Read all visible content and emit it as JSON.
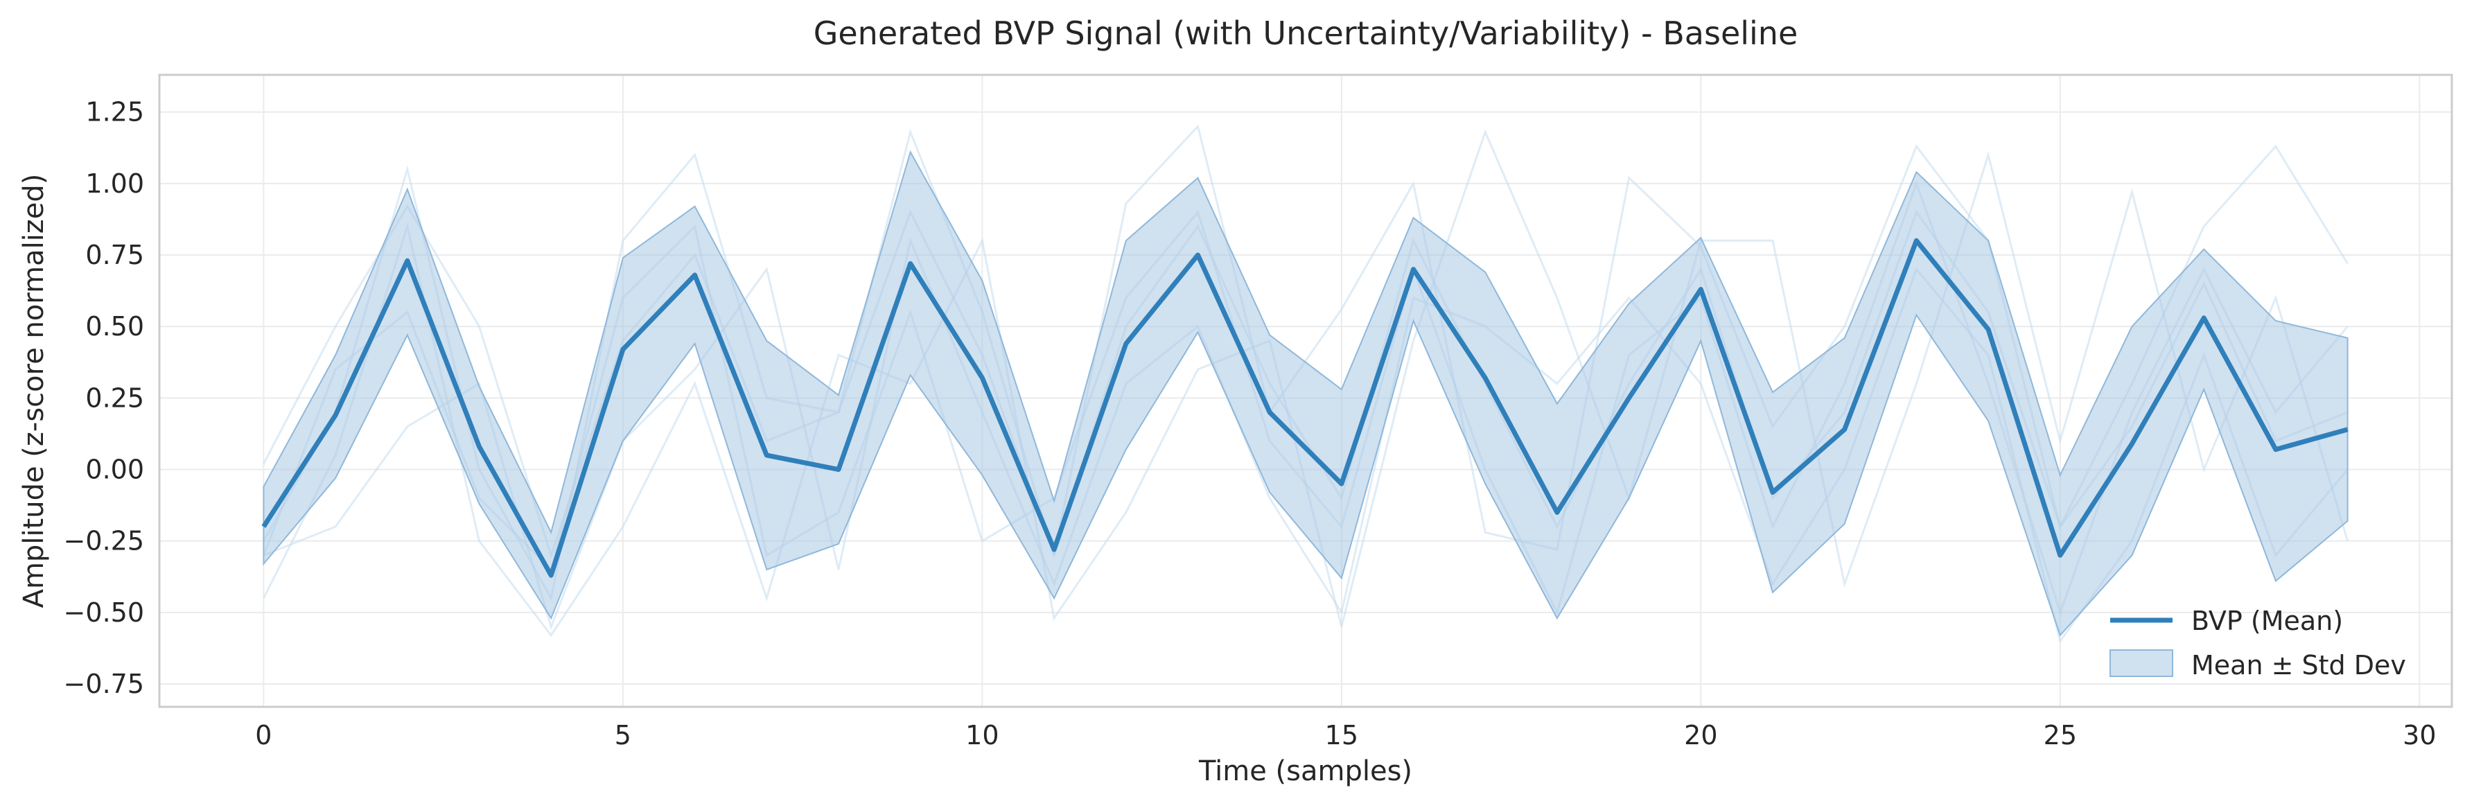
{
  "chart_data": {
    "type": "line",
    "title": "Generated BVP Signal (with Uncertainty/Variability) - Baseline",
    "xlabel": "Time (samples)",
    "ylabel": "Amplitude (z-score normalized)",
    "xlim": [
      -1.45,
      30.45
    ],
    "ylim": [
      -0.83,
      1.38
    ],
    "xticks": [
      0,
      5,
      10,
      15,
      20,
      25,
      30
    ],
    "yticks": [
      -0.75,
      -0.5,
      -0.25,
      0.0,
      0.25,
      0.5,
      0.75,
      1.0,
      1.25
    ],
    "ytick_labels": [
      "−0.75",
      "−0.50",
      "−0.25",
      "0.00",
      "0.25",
      "0.50",
      "0.75",
      "1.00",
      "1.25"
    ],
    "grid": true,
    "legend_position": "bottom-right",
    "colors": {
      "mean": "#2f7fba",
      "band": "#a9c9e3",
      "samples": "#c5dcee"
    },
    "x": [
      0,
      1,
      2,
      3,
      4,
      5,
      6,
      7,
      8,
      9,
      10,
      11,
      12,
      13,
      14,
      15,
      16,
      17,
      18,
      19,
      20,
      21,
      22,
      23,
      24,
      25,
      26,
      27,
      28,
      29
    ],
    "series": [
      {
        "name": "BVP (Mean)",
        "values": [
          -0.2,
          0.19,
          0.73,
          0.08,
          -0.37,
          0.42,
          0.68,
          0.05,
          0.0,
          0.72,
          0.32,
          -0.28,
          0.44,
          0.75,
          0.2,
          -0.05,
          0.7,
          0.32,
          -0.15,
          0.25,
          0.63,
          -0.08,
          0.14,
          0.8,
          0.49,
          -0.3,
          0.09,
          0.53,
          0.07,
          0.14
        ]
      },
      {
        "name": "Mean ± Std Dev",
        "lower": [
          -0.33,
          -0.03,
          0.47,
          -0.12,
          -0.52,
          0.1,
          0.44,
          -0.35,
          -0.26,
          0.33,
          -0.02,
          -0.45,
          0.07,
          0.48,
          -0.08,
          -0.38,
          0.52,
          -0.05,
          -0.52,
          -0.1,
          0.45,
          -0.43,
          -0.19,
          0.54,
          0.17,
          -0.58,
          -0.3,
          0.28,
          -0.39,
          -0.18
        ],
        "upper": [
          -0.06,
          0.4,
          0.98,
          0.29,
          -0.22,
          0.74,
          0.92,
          0.45,
          0.26,
          1.11,
          0.66,
          -0.11,
          0.8,
          1.02,
          0.47,
          0.28,
          0.88,
          0.69,
          0.23,
          0.58,
          0.81,
          0.27,
          0.46,
          1.04,
          0.8,
          -0.02,
          0.5,
          0.77,
          0.52,
          0.46
        ]
      }
    ],
    "sample_traces": [
      [
        0.02,
        0.5,
        0.92,
        0.5,
        -0.3,
        0.45,
        0.75,
        0.1,
        0.2,
        0.9,
        0.4,
        -0.3,
        0.5,
        0.85,
        0.3,
        -0.1,
        0.8,
        0.3,
        -0.2,
        0.3,
        0.7,
        -0.1,
        0.2,
        0.9,
        0.55,
        -0.2,
        0.15,
        0.65,
        0.1,
        0.2
      ],
      [
        -0.3,
        -0.2,
        0.15,
        0.3,
        -0.55,
        0.1,
        0.35,
        0.7,
        -0.35,
        0.8,
        0.2,
        -0.4,
        0.3,
        0.5,
        -0.1,
        -0.5,
        0.6,
        0.5,
        0.3,
        0.6,
        0.3,
        -0.4,
        0.0,
        0.7,
        0.4,
        -0.6,
        -0.25,
        0.4,
        -0.3,
        0.0
      ],
      [
        -0.45,
        0.05,
        0.85,
        -0.25,
        -0.58,
        -0.2,
        0.3,
        -0.45,
        0.4,
        0.3,
        0.8,
        -0.52,
        -0.15,
        0.35,
        0.45,
        -0.55,
        0.45,
        1.18,
        0.6,
        -0.1,
        0.8,
        0.8,
        -0.4,
        0.3,
        1.1,
        0.1,
        0.97,
        0.0,
        0.6,
        -0.25
      ],
      [
        -0.25,
        0.2,
        1.05,
        0.0,
        -0.45,
        0.8,
        1.1,
        0.25,
        0.2,
        1.18,
        0.55,
        -0.3,
        0.93,
        1.2,
        0.2,
        0.56,
        1.0,
        -0.22,
        -0.28,
        1.02,
        0.78,
        0.15,
        0.5,
        1.13,
        0.8,
        -0.2,
        0.3,
        0.85,
        1.13,
        0.72
      ],
      [
        -0.3,
        0.35,
        0.55,
        -0.1,
        -0.35,
        0.6,
        0.85,
        -0.3,
        -0.15,
        0.55,
        -0.25,
        -0.1,
        0.6,
        0.9,
        0.1,
        -0.2,
        0.7,
        0.0,
        -0.5,
        0.4,
        0.6,
        -0.2,
        0.3,
        1.0,
        0.3,
        -0.5,
        0.2,
        0.7,
        0.2,
        0.5
      ]
    ]
  }
}
